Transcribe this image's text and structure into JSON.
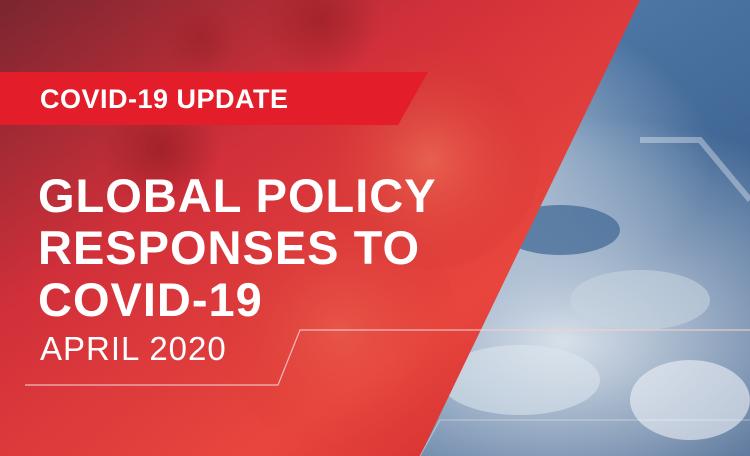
{
  "banner": {
    "tag": "COVID-19 UPDATE",
    "headline": [
      "GLOBAL POLICY",
      "RESPONSES TO",
      "COVID-19"
    ],
    "date": "APRIL 2020"
  },
  "colors": {
    "tag_red": "#e31d2a",
    "panel_red": "#c9202b",
    "text": "#ffffff",
    "earth_blue": "#5d86b3"
  }
}
